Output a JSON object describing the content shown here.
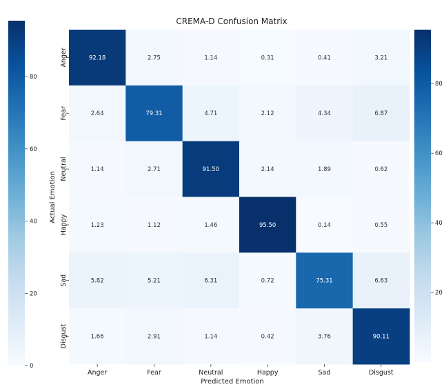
{
  "chart_data": {
    "type": "heatmap",
    "title": "CREMA-D Confusion Matrix",
    "xlabel": "Predicted Emotion",
    "ylabel": "Actual Emotion",
    "x_categories": [
      "Anger",
      "Fear",
      "Neutral",
      "Happy",
      "Sad",
      "Disgust"
    ],
    "y_categories": [
      "Anger",
      "Fear",
      "Neutral",
      "Happy",
      "Sad",
      "Disgust"
    ],
    "values": [
      [
        92.18,
        2.75,
        1.14,
        0.31,
        0.41,
        3.21
      ],
      [
        2.64,
        79.31,
        4.71,
        2.12,
        4.34,
        6.87
      ],
      [
        1.14,
        2.71,
        91.5,
        2.14,
        1.89,
        0.62
      ],
      [
        1.23,
        1.12,
        1.46,
        95.5,
        0.14,
        0.55
      ],
      [
        5.82,
        5.21,
        6.31,
        0.72,
        75.31,
        6.63
      ],
      [
        1.66,
        2.91,
        1.14,
        0.42,
        3.76,
        90.11
      ]
    ],
    "value_labels": [
      [
        "92.18",
        "2.75",
        "1.14",
        "0.31",
        "0.41",
        "3.21"
      ],
      [
        "2.64",
        "79.31",
        "4.71",
        "2.12",
        "4.34",
        "6.87"
      ],
      [
        "1.14",
        "2.71",
        "91.50",
        "2.14",
        "1.89",
        "0.62"
      ],
      [
        "1.23",
        "1.12",
        "1.46",
        "95.50",
        "0.14",
        "0.55"
      ],
      [
        "5.82",
        "5.21",
        "6.31",
        "0.72",
        "75.31",
        "6.63"
      ],
      [
        "1.66",
        "2.91",
        "1.14",
        "0.42",
        "3.76",
        "90.11"
      ]
    ],
    "colorbar": {
      "ticks": [
        0,
        20,
        40,
        60,
        80
      ],
      "tick_labels": [
        "0",
        "20",
        "40",
        "60",
        "80"
      ],
      "range": [
        0,
        95.5
      ],
      "colormap": "Blues",
      "low_color": "#f7fbff",
      "high_color": "#08306b",
      "left_ticks": [
        0,
        20,
        40,
        60,
        80
      ],
      "left_tick_labels": [
        "0",
        "20",
        "40",
        "60",
        "80"
      ]
    },
    "grid": false
  }
}
